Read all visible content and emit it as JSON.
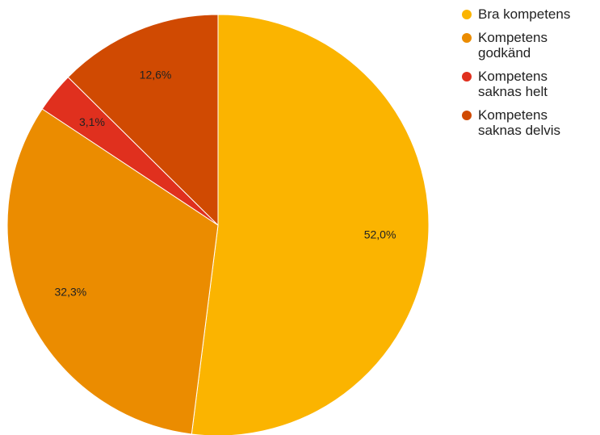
{
  "chart_data": {
    "type": "pie",
    "categories": [
      "Bra kompetens",
      "Kompetens godkänd",
      "Kompetens saknas helt",
      "Kompetens saknas delvis"
    ],
    "values": [
      52.0,
      32.3,
      3.1,
      12.6
    ],
    "value_labels": [
      "52,0%",
      "32,3%",
      "3,1%",
      "12,6%"
    ],
    "colors": [
      "#fbb400",
      "#eb8c00",
      "#e0301e",
      "#d04a02"
    ],
    "legend": "right"
  }
}
